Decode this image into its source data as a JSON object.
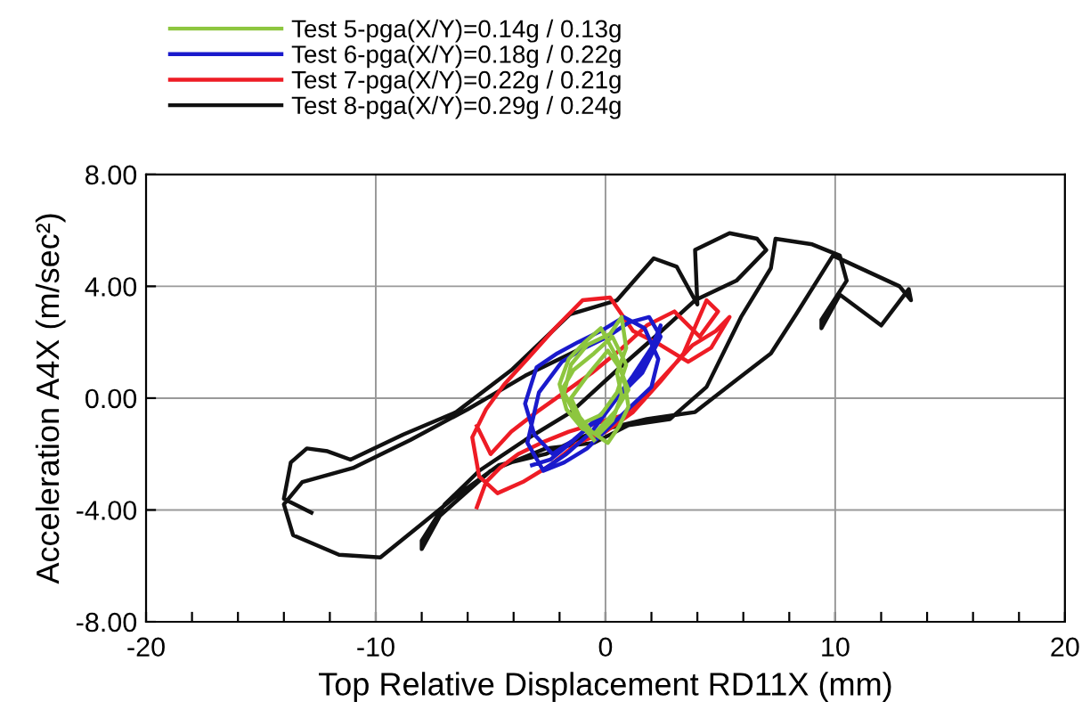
{
  "chart_data": {
    "type": "line",
    "xlabel": "Top Relative Displacement RD11X (mm)",
    "ylabel": "Acceleration A4X (m/sec²)",
    "xlim": [
      -20,
      20
    ],
    "ylim": [
      -8,
      8
    ],
    "xticks": [
      -20,
      {
        "value": -18,
        "label": null
      },
      {
        "value": -16,
        "label": null
      },
      {
        "value": -14,
        "label": null
      },
      {
        "value": -12,
        "label": null
      },
      -10,
      {
        "value": -8,
        "label": null
      },
      {
        "value": -6,
        "label": null
      },
      {
        "value": -4,
        "label": null
      },
      {
        "value": -2,
        "label": null
      },
      0,
      {
        "value": 2,
        "label": null
      },
      {
        "value": 4,
        "label": null
      },
      {
        "value": 6,
        "label": null
      },
      {
        "value": 8,
        "label": null
      },
      10,
      {
        "value": 12,
        "label": null
      },
      {
        "value": 14,
        "label": null
      },
      {
        "value": 16,
        "label": null
      },
      {
        "value": 18,
        "label": null
      },
      20
    ],
    "yticks": [
      {
        "value": -8,
        "label": "-8.00"
      },
      {
        "value": -4,
        "label": "-4.00"
      },
      {
        "value": 0,
        "label": "0.00"
      },
      {
        "value": 4,
        "label": "4.00"
      },
      {
        "value": 8,
        "label": "8.00"
      }
    ],
    "grid": true,
    "legend": "top left",
    "marker": "none",
    "line_style": "solid",
    "series": [
      {
        "name": "Test 5-pga(X/Y)=0.14g / 0.13g",
        "color": "#8dc63f",
        "x": [
          -0.5,
          -1.2,
          -1.8,
          -1.5,
          -0.8,
          0.2,
          0.7,
          0.9,
          0.5,
          0.7,
          0.3,
          -0.3,
          -1.0,
          -1.7,
          -2.0,
          -1.6,
          -0.9,
          -0.2,
          0.4,
          0.8,
          1.0,
          0.6,
          0.1,
          -0.6,
          -1.3,
          -1.9,
          -1.4,
          -0.5,
          0.3,
          0.9,
          0.5,
          -0.2,
          -1.0,
          -1.5,
          -0.7,
          0.1,
          0.6,
          1.0,
          0.4,
          -0.4
        ],
        "values": [
          -1.5,
          -0.8,
          0.2,
          1.2,
          1.9,
          2.3,
          2.9,
          1.8,
          0.9,
          0.1,
          -0.8,
          -1.3,
          -1.1,
          -0.4,
          0.5,
          1.4,
          2.0,
          2.5,
          1.6,
          0.7,
          -0.3,
          -1.0,
          -1.6,
          -1.2,
          -0.5,
          0.3,
          1.0,
          1.6,
          2.2,
          1.2,
          0.2,
          -0.6,
          -0.9,
          0.0,
          0.9,
          1.7,
          1.1,
          0.3,
          -0.5,
          -1.2
        ]
      },
      {
        "name": "Test 6-pga(X/Y)=0.18g / 0.22g",
        "color": "#1a1acc",
        "x": [
          -3.2,
          -2.4,
          -1.5,
          -0.6,
          0.3,
          1.2,
          2.0,
          2.4,
          2.2,
          1.5,
          0.6,
          -0.4,
          -1.4,
          -2.3,
          -3.1,
          -3.5,
          -3.0,
          -2.1,
          -1.2,
          -0.2,
          0.8,
          1.7,
          2.3,
          2.0,
          1.1,
          0.2,
          -0.8,
          -1.8,
          -2.7,
          -3.4,
          -2.9,
          -1.9,
          -0.9,
          0.1,
          1.0,
          1.9,
          2.4,
          1.6,
          0.5,
          -0.6,
          -1.7,
          -2.6
        ],
        "values": [
          -2.4,
          -2.2,
          -1.6,
          -0.9,
          -0.2,
          0.8,
          1.8,
          2.6,
          2.0,
          1.0,
          0.1,
          -0.8,
          -1.5,
          -2.0,
          -1.3,
          -0.2,
          1.1,
          1.6,
          2.0,
          2.4,
          2.9,
          2.5,
          1.4,
          0.4,
          -0.3,
          -1.0,
          -1.8,
          -2.3,
          -2.6,
          -1.6,
          0.2,
          1.3,
          1.8,
          2.2,
          2.7,
          2.9,
          2.2,
          0.9,
          0.0,
          -1.2,
          -2.0,
          -2.5
        ]
      },
      {
        "name": "Test 7-pga(X/Y)=0.22g / 0.21g",
        "color": "#ee1c25",
        "x": [
          -5.6,
          -5.2,
          -4.6,
          -3.8,
          -2.8,
          -1.6,
          -0.4,
          0.8,
          2.0,
          3.0,
          3.8,
          4.8,
          5.4,
          4.6,
          3.6,
          2.4,
          1.2,
          0.2,
          -1.0,
          -2.2,
          -3.4,
          -4.4,
          -5.2,
          -5.8,
          -5.5,
          -4.7,
          -3.6,
          -2.4,
          -1.2,
          0.0,
          1.2,
          2.4,
          3.4,
          4.4,
          4.9,
          4.1,
          3.0,
          1.8,
          0.6,
          -0.6,
          -1.8,
          -3.0,
          -4.1,
          -5.0,
          -5.6
        ],
        "values": [
          -3.9,
          -3.0,
          -2.5,
          -2.0,
          -1.6,
          -1.2,
          -0.9,
          -0.6,
          0.3,
          1.2,
          1.9,
          2.4,
          2.9,
          1.8,
          1.3,
          1.9,
          2.4,
          3.6,
          3.5,
          2.5,
          1.4,
          0.5,
          -0.4,
          -1.4,
          -2.8,
          -3.4,
          -3.0,
          -2.4,
          -1.6,
          -1.2,
          -0.5,
          0.6,
          1.6,
          3.5,
          3.1,
          2.2,
          3.1,
          2.6,
          1.7,
          0.9,
          0.2,
          -0.5,
          -1.2,
          -2.0,
          -1.0
        ]
      },
      {
        "name": "Test 8-pga(X/Y)=0.29g / 0.24g",
        "color": "#111111",
        "x": [
          -12.8,
          -14.0,
          -13.7,
          -13.0,
          -12.1,
          -11.1,
          -8.8,
          -6.5,
          -4.1,
          -1.55,
          0.5,
          2.1,
          3.1,
          4.0,
          3.9,
          5.4,
          6.6,
          7.0,
          5.7,
          3.9,
          2.3,
          0.5,
          -1.5,
          -3.5,
          -5.5,
          -7.0,
          -8.0,
          -8.0,
          -7.2,
          -5.0,
          -2.6,
          -0.5,
          1.0,
          2.8,
          4.4,
          5.9,
          7.2,
          7.4,
          9.0,
          10.2,
          10.5,
          9.4,
          9.4,
          10.2,
          12.0,
          13.2,
          13.3,
          12.8,
          9.9,
          8.3,
          7.2,
          5.7,
          3.9,
          1.8,
          -0.5,
          -2.6,
          -4.65,
          -6.5,
          -8.0,
          -9.8,
          -11.6,
          -13.6,
          -14.0,
          -13.2,
          -11.0,
          -8.5,
          -6.0,
          -3.5,
          -1.0
        ],
        "values": [
          -4.1,
          -3.6,
          -2.3,
          -1.8,
          -1.9,
          -2.2,
          -1.3,
          -0.5,
          1.0,
          3.0,
          3.5,
          5.0,
          4.7,
          3.35,
          5.3,
          5.9,
          5.7,
          5.3,
          4.2,
          3.5,
          2.3,
          1.0,
          -0.5,
          -1.5,
          -2.6,
          -3.8,
          -5.1,
          -5.4,
          -4.2,
          -2.6,
          -1.8,
          -1.6,
          -0.97,
          -0.75,
          0.4,
          2.9,
          4.65,
          5.7,
          5.5,
          5.1,
          4.2,
          2.8,
          2.5,
          3.7,
          2.6,
          3.9,
          3.5,
          4.0,
          5.1,
          3.0,
          1.6,
          0.65,
          -0.5,
          -0.75,
          -1.2,
          -2.0,
          -2.4,
          -3.5,
          -4.5,
          -5.7,
          -5.6,
          -4.9,
          -3.8,
          -3.0,
          -2.5,
          -1.5,
          -0.4,
          0.8,
          1.8
        ]
      }
    ]
  }
}
